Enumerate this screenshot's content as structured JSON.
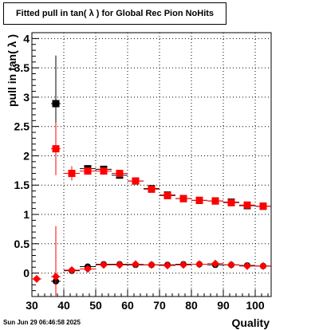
{
  "chart_data": {
    "type": "scatter",
    "title": "Fitted pull in tan( λ ) for Global Rec Pion NoHits",
    "xlabel": "Quality",
    "ylabel": "pull in tan( λ )",
    "xlim": [
      30,
      105
    ],
    "ylim": [
      -0.4,
      4.1
    ],
    "grid": true,
    "x_ticks": [
      30,
      40,
      50,
      60,
      70,
      80,
      90,
      100
    ],
    "y_ticks": [
      0,
      0.5,
      1,
      1.5,
      2,
      2.5,
      3,
      3.5,
      4
    ],
    "x_tick_labels": [
      "30",
      "40",
      "50",
      "60",
      "70",
      "80",
      "90",
      "100"
    ],
    "y_tick_labels": [
      "0",
      "0.5",
      "1",
      "1.5",
      "2",
      "2.5",
      "3",
      "3.5",
      "4"
    ],
    "series": [
      {
        "marker": "square",
        "color": "#000000",
        "points": [
          {
            "x": 37.5,
            "y": 2.89,
            "xerr": 1.5,
            "yerr": 0.82
          },
          {
            "x": 42.5,
            "y": 1.7,
            "xerr": 2.5,
            "yerr": 0.12
          },
          {
            "x": 47.5,
            "y": 1.78,
            "xerr": 2.5,
            "yerr": 0.05
          },
          {
            "x": 52.5,
            "y": 1.77,
            "xerr": 2.5,
            "yerr": 0.04
          },
          {
            "x": 57.5,
            "y": 1.67,
            "xerr": 2.5,
            "yerr": 0.03
          },
          {
            "x": 62.5,
            "y": 1.57,
            "xerr": 2.5,
            "yerr": 0.03
          },
          {
            "x": 67.5,
            "y": 1.44,
            "xerr": 2.5,
            "yerr": 0.02
          },
          {
            "x": 72.5,
            "y": 1.33,
            "xerr": 2.5,
            "yerr": 0.02
          },
          {
            "x": 77.5,
            "y": 1.27,
            "xerr": 2.5,
            "yerr": 0.02
          },
          {
            "x": 82.5,
            "y": 1.24,
            "xerr": 2.5,
            "yerr": 0.02
          },
          {
            "x": 87.5,
            "y": 1.23,
            "xerr": 2.5,
            "yerr": 0.02
          },
          {
            "x": 92.5,
            "y": 1.21,
            "xerr": 2.5,
            "yerr": 0.02
          },
          {
            "x": 97.5,
            "y": 1.15,
            "xerr": 2.5,
            "yerr": 0.02
          },
          {
            "x": 102.5,
            "y": 1.14,
            "xerr": 2.5,
            "yerr": 0.02
          }
        ]
      },
      {
        "marker": "square",
        "color": "#ff0000",
        "points": [
          {
            "x": 37.5,
            "y": 2.12,
            "xerr": 1.5,
            "yerr": 0.45
          },
          {
            "x": 42.5,
            "y": 1.7,
            "xerr": 2.5,
            "yerr": 0.12
          },
          {
            "x": 47.5,
            "y": 1.74,
            "xerr": 2.5,
            "yerr": 0.05
          },
          {
            "x": 52.5,
            "y": 1.74,
            "xerr": 2.5,
            "yerr": 0.04
          },
          {
            "x": 57.5,
            "y": 1.7,
            "xerr": 2.5,
            "yerr": 0.03
          },
          {
            "x": 62.5,
            "y": 1.57,
            "xerr": 2.5,
            "yerr": 0.03
          },
          {
            "x": 67.5,
            "y": 1.43,
            "xerr": 2.5,
            "yerr": 0.02
          },
          {
            "x": 72.5,
            "y": 1.32,
            "xerr": 2.5,
            "yerr": 0.02
          },
          {
            "x": 77.5,
            "y": 1.27,
            "xerr": 2.5,
            "yerr": 0.02
          },
          {
            "x": 82.5,
            "y": 1.24,
            "xerr": 2.5,
            "yerr": 0.02
          },
          {
            "x": 87.5,
            "y": 1.23,
            "xerr": 2.5,
            "yerr": 0.02
          },
          {
            "x": 92.5,
            "y": 1.2,
            "xerr": 2.5,
            "yerr": 0.02
          },
          {
            "x": 97.5,
            "y": 1.16,
            "xerr": 2.5,
            "yerr": 0.02
          },
          {
            "x": 102.5,
            "y": 1.14,
            "xerr": 2.5,
            "yerr": 0.02
          }
        ]
      },
      {
        "marker": "circle",
        "color": "#000000",
        "points": [
          {
            "x": 37.5,
            "y": -0.14,
            "xerr": 1.5,
            "yerr": 0.52
          },
          {
            "x": 42.5,
            "y": 0.04,
            "xerr": 2.5,
            "yerr": 0.06
          },
          {
            "x": 47.5,
            "y": 0.11,
            "xerr": 2.5,
            "yerr": 0.04
          },
          {
            "x": 52.5,
            "y": 0.15,
            "xerr": 2.5,
            "yerr": 0.03
          },
          {
            "x": 57.5,
            "y": 0.15,
            "xerr": 2.5,
            "yerr": 0.03
          },
          {
            "x": 62.5,
            "y": 0.14,
            "xerr": 2.5,
            "yerr": 0.02
          },
          {
            "x": 67.5,
            "y": 0.14,
            "xerr": 2.5,
            "yerr": 0.02
          },
          {
            "x": 72.5,
            "y": 0.14,
            "xerr": 2.5,
            "yerr": 0.02
          },
          {
            "x": 77.5,
            "y": 0.15,
            "xerr": 2.5,
            "yerr": 0.02
          },
          {
            "x": 82.5,
            "y": 0.15,
            "xerr": 2.5,
            "yerr": 0.02
          },
          {
            "x": 87.5,
            "y": 0.14,
            "xerr": 2.5,
            "yerr": 0.02
          },
          {
            "x": 92.5,
            "y": 0.14,
            "xerr": 2.5,
            "yerr": 0.02
          },
          {
            "x": 97.5,
            "y": 0.13,
            "xerr": 2.5,
            "yerr": 0.02
          },
          {
            "x": 102.5,
            "y": 0.12,
            "xerr": 2.5,
            "yerr": 0.02
          }
        ]
      },
      {
        "marker": "diamond",
        "color": "#ff0000",
        "points": [
          {
            "x": 31.5,
            "y": -0.1,
            "xerr": 1.5,
            "yerr": 0.0
          },
          {
            "x": 37.5,
            "y": -0.06,
            "xerr": 1.5,
            "yerr": 0.86
          },
          {
            "x": 42.5,
            "y": 0.05,
            "xerr": 2.5,
            "yerr": 0.06
          },
          {
            "x": 47.5,
            "y": 0.07,
            "xerr": 2.5,
            "yerr": 0.04
          },
          {
            "x": 52.5,
            "y": 0.14,
            "xerr": 2.5,
            "yerr": 0.03
          },
          {
            "x": 57.5,
            "y": 0.14,
            "xerr": 2.5,
            "yerr": 0.03
          },
          {
            "x": 62.5,
            "y": 0.15,
            "xerr": 2.5,
            "yerr": 0.02
          },
          {
            "x": 67.5,
            "y": 0.14,
            "xerr": 2.5,
            "yerr": 0.02
          },
          {
            "x": 72.5,
            "y": 0.13,
            "xerr": 2.5,
            "yerr": 0.02
          },
          {
            "x": 77.5,
            "y": 0.14,
            "xerr": 2.5,
            "yerr": 0.02
          },
          {
            "x": 82.5,
            "y": 0.15,
            "xerr": 2.5,
            "yerr": 0.02
          },
          {
            "x": 87.5,
            "y": 0.16,
            "xerr": 2.5,
            "yerr": 0.02
          },
          {
            "x": 92.5,
            "y": 0.14,
            "xerr": 2.5,
            "yerr": 0.02
          },
          {
            "x": 97.5,
            "y": 0.12,
            "xerr": 2.5,
            "yerr": 0.02
          },
          {
            "x": 102.5,
            "y": 0.12,
            "xerr": 2.5,
            "yerr": 0.02
          }
        ]
      }
    ]
  },
  "footer": {
    "timestamp": "Sun Jun 29 06:46:58 2025"
  }
}
